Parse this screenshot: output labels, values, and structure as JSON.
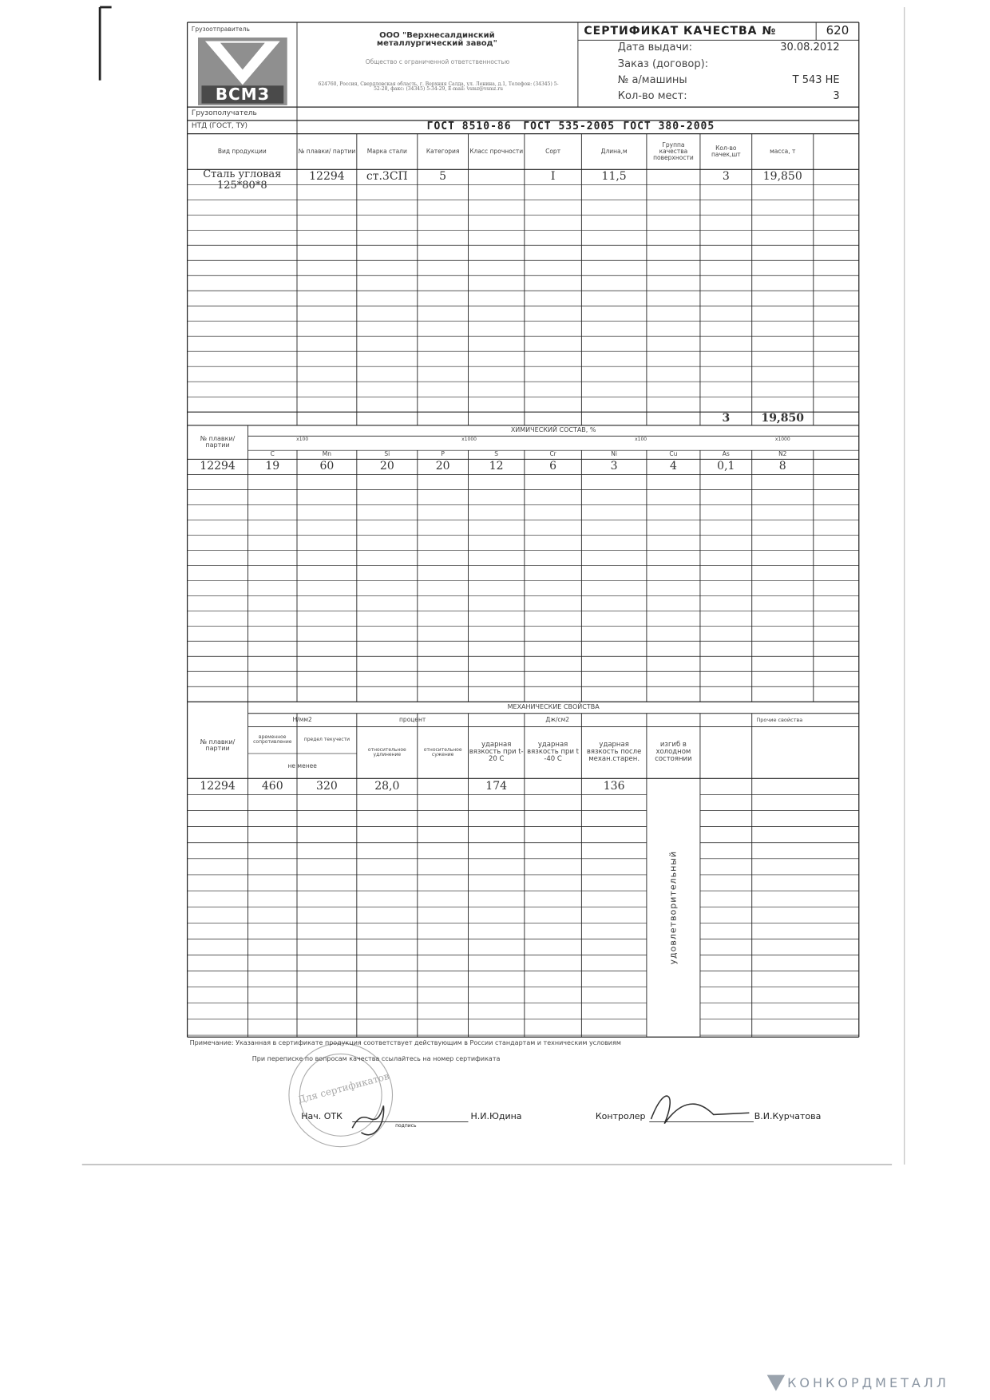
{
  "shipper_label": "Грузоотправитель",
  "logo": "ВСМЗ",
  "company": {
    "name": "ООО \"Верхнесалдинский металлургический завод\"",
    "form": "Общество с ограниченной ответственностью",
    "address": "624760, Россия, Свердловская область, г. Верхняя Салда, ул. Ленина, д.1, Телефон: (34345) 5-52-28, факс: (34345) 5-34-29, E-mail: vsmz@vsmz.ru"
  },
  "certificate": {
    "title": "СЕРТИФИКАТ КАЧЕСТВА №",
    "number": "620",
    "fields": [
      {
        "label": "Дата выдачи:",
        "value": "30.08.2012"
      },
      {
        "label": "Заказ (договор):"
      },
      {
        "label": "№ а/машины",
        "value": "Т 543 НЕ"
      },
      {
        "label": "Кол-во мест:",
        "value": "3"
      }
    ]
  },
  "consignee_label": "Грузополучатель",
  "standards": {
    "label": "НТД (ГОСТ, ТУ)",
    "values": [
      "ГОСТ 8510-86",
      "ГОСТ 535-2005",
      "ГОСТ 380-2005"
    ]
  },
  "products": {
    "columns": [
      "Вид продукции",
      "№ плавки/ партии",
      "Марка стали",
      "Категория",
      "Класс прочности",
      "Сорт",
      "Длина,м",
      "Группа качества поверхности",
      "Кол-во пачек,шт",
      "масса, т"
    ],
    "rows": [
      [
        "Сталь угловая 125*80*8",
        "12294",
        "ст.3СП",
        "5",
        null,
        "I",
        "11,5",
        null,
        "3",
        "19,850"
      ]
    ],
    "totals": {
      "packs": "3",
      "mass": "19,850"
    }
  },
  "chemistry": {
    "heat_label": "№ плавки/ партии",
    "title": "ХИМИЧЕСКИЙ СОСТАВ, %",
    "multipliers": [
      "x100",
      "x1000",
      "x100",
      "x1000"
    ],
    "elements": [
      "C",
      "Mn",
      "Si",
      "P",
      "S",
      "Cr",
      "Ni",
      "Cu",
      "As",
      "N2"
    ],
    "rows": [
      {
        "heat": "12294",
        "values": [
          "19",
          "60",
          "20",
          "20",
          "12",
          "6",
          "3",
          "4",
          "0,1",
          "8"
        ]
      }
    ]
  },
  "mechanics": {
    "heat_label": "№ плавки/ партии",
    "title": "МЕХАНИЧЕСКИЕ СВОЙСТВА",
    "groups": [
      "Н/мм2",
      "процент",
      "Дж/см2"
    ],
    "other_label": "Прочие свойства",
    "columns": [
      "временное сопротивление",
      "предел текучести",
      "относительное удлинение",
      "относительное сужение",
      "ударная вязкость при t-20 C",
      "ударная вязкость при t -40 C",
      "ударная вязкость после механ.старен.",
      "изгиб в холодном состоянии"
    ],
    "min_label": "не менее",
    "rows": [
      {
        "heat": "12294",
        "values": [
          "460",
          "320",
          "28,0",
          null,
          "174",
          null,
          "136"
        ],
        "bend": "удовлетворительный"
      }
    ]
  },
  "footer": {
    "note": "Примечание: Указанная в сертификате продукция соответствует действующим в России стандартам и техническим условиям",
    "correspondence": "При переписке по вопросам качества ссылайтесь на номер сертификата",
    "stamp": "Для сертификатов",
    "otk_label": "Нач. ОТК",
    "otk_name": "Н.И.Юдина",
    "signature_label": "подпись",
    "controller_label": "Контролер",
    "controller_name": "В.И.Курчатова"
  },
  "watermark": "КОНКОРДМЕТАЛЛ"
}
